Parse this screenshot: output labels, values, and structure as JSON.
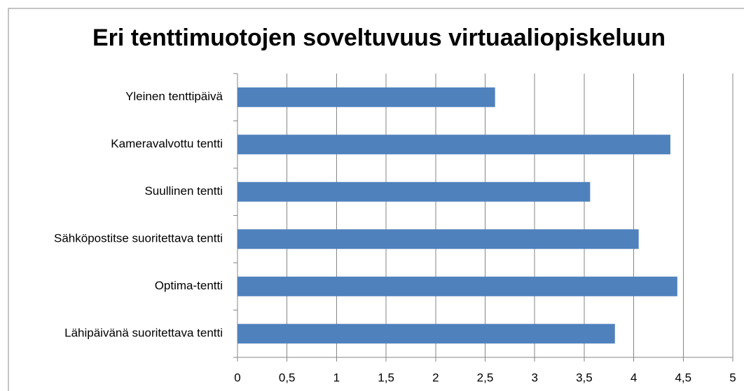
{
  "chart_data": {
    "type": "bar",
    "orientation": "horizontal",
    "title": "Eri tenttimuotojen soveltuvuus virtuaaliopiskeluun",
    "categories": [
      "Yleinen tenttipäivä",
      "Kameravalvottu tentti",
      "Suullinen tentti",
      "Sähköpostitse suoritettava tentti",
      "Optima-tentti",
      "Lähipäivänä suoritettava tentti"
    ],
    "values": [
      2.6,
      4.37,
      3.56,
      4.05,
      4.44,
      3.81
    ],
    "color": "#4f81bd",
    "xlim": [
      0,
      5
    ],
    "xticks": [
      0,
      {
        "value": 0.5,
        "label": "0,5"
      },
      1,
      {
        "value": 1.5,
        "label": "1,5"
      },
      2,
      {
        "value": 2.5,
        "label": "2,5"
      },
      3,
      {
        "value": 3.5,
        "label": "3,5"
      },
      4,
      {
        "value": 4.5,
        "label": "4,5"
      },
      5
    ],
    "grid": true
  }
}
